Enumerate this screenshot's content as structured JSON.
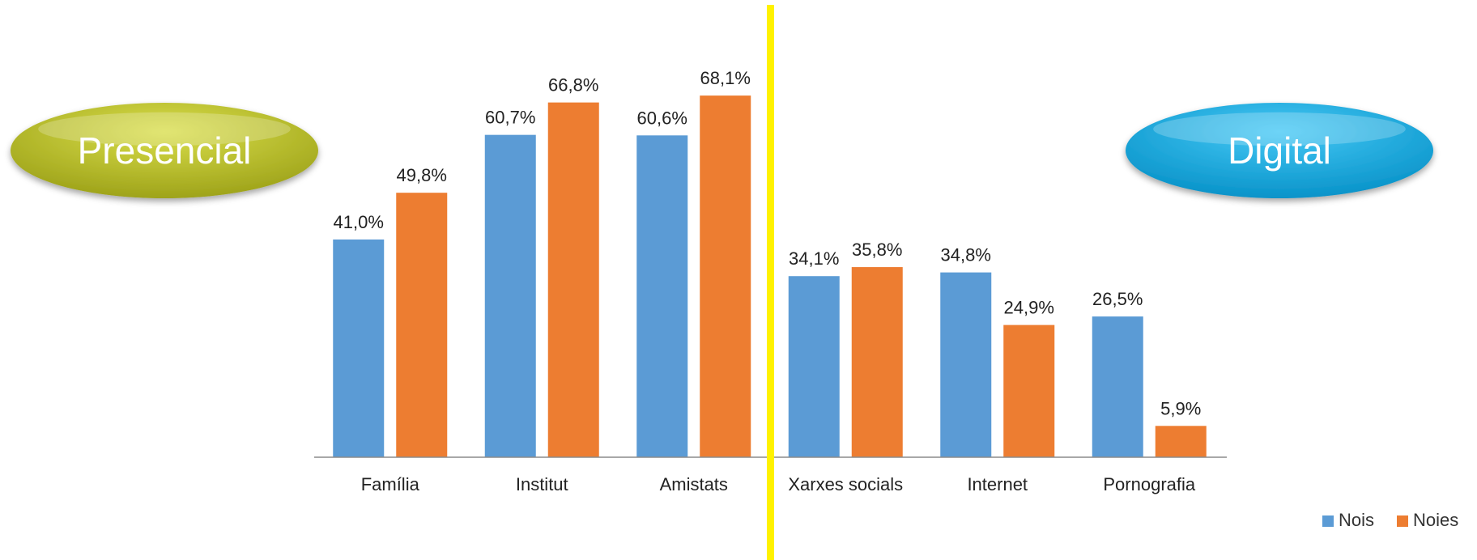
{
  "chart_data": {
    "type": "bar",
    "categories": [
      "Família",
      "Institut",
      "Amistats",
      "Xarxes socials",
      "Internet",
      "Pornografia"
    ],
    "series": [
      {
        "name": "Nois",
        "color": "#5B9BD5",
        "values": [
          41.0,
          60.7,
          60.6,
          34.1,
          34.8,
          26.5
        ],
        "labels": [
          "41,0%",
          "60,7%",
          "60,6%",
          "34,1%",
          "34,8%",
          "26,5%"
        ]
      },
      {
        "name": "Noies",
        "color": "#ED7D31",
        "values": [
          49.8,
          66.8,
          68.1,
          35.8,
          24.9,
          5.9
        ],
        "labels": [
          "49,8%",
          "66,8%",
          "68,1%",
          "35,8%",
          "24,9%",
          "5,9%"
        ]
      }
    ],
    "ylim": [
      0,
      80
    ],
    "grid": false,
    "legend": "bottom-right",
    "groups": [
      {
        "label": "Presencial",
        "color": "#B5BB26",
        "categories": [
          "Família",
          "Institut",
          "Amistats"
        ]
      },
      {
        "label": "Digital",
        "color": "#1AAEE3",
        "categories": [
          "Xarxes socials",
          "Internet",
          "Pornografia"
        ]
      }
    ],
    "divider_color": "#FFF200"
  }
}
